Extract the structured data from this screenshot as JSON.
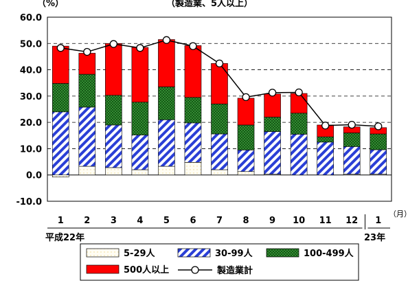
{
  "chart_data": {
    "type": "bar",
    "stacked": true,
    "title": "（製造業、5人以上）",
    "y_unit": "（%）",
    "x_unit": "（月）",
    "ylim": [
      -10.0,
      60.0
    ],
    "y_ticks": [
      "60.0",
      "50.0",
      "40.0",
      "30.0",
      "20.0",
      "10.0",
      "0.0",
      "-10.0"
    ],
    "grid": true,
    "categories": [
      "1",
      "2",
      "3",
      "4",
      "5",
      "6",
      "7",
      "8",
      "9",
      "10",
      "11",
      "12",
      "1"
    ],
    "year_labels": [
      "平成22年",
      "23年"
    ],
    "series": [
      {
        "name": "5-29人",
        "values": [
          -0.8,
          3.3,
          2.8,
          2.0,
          3.3,
          4.8,
          2.0,
          1.3,
          0.3,
          0.0,
          0.0,
          0.3,
          0.3
        ]
      },
      {
        "name": "30-99人",
        "values": [
          24.0,
          22.5,
          16.2,
          13.2,
          17.7,
          15.0,
          13.6,
          8.2,
          16.2,
          15.5,
          12.5,
          10.5,
          9.3
        ]
      },
      {
        "name": "100-499人",
        "values": [
          10.8,
          12.5,
          11.3,
          12.5,
          12.5,
          9.7,
          11.4,
          9.5,
          5.5,
          8.0,
          2.0,
          5.2,
          6.0
        ]
      },
      {
        "name": "500人以上",
        "values": [
          14.2,
          8.0,
          19.7,
          20.8,
          18.0,
          19.7,
          15.4,
          10.2,
          8.8,
          7.5,
          4.5,
          2.3,
          2.4
        ]
      }
    ],
    "total": {
      "name": "製造業計",
      "values": [
        48.3,
        46.8,
        49.8,
        48.3,
        51.3,
        49.0,
        42.4,
        29.6,
        31.3,
        31.4,
        18.8,
        19.1,
        18.5
      ]
    },
    "colors": {
      "5-29人": "#fff8e0",
      "30-99人": "#2a3fd6",
      "100-499人": "#2e8b2e",
      "500人以上": "#ff0000",
      "製造業計": "#000000"
    },
    "legend_position": "bottom"
  }
}
